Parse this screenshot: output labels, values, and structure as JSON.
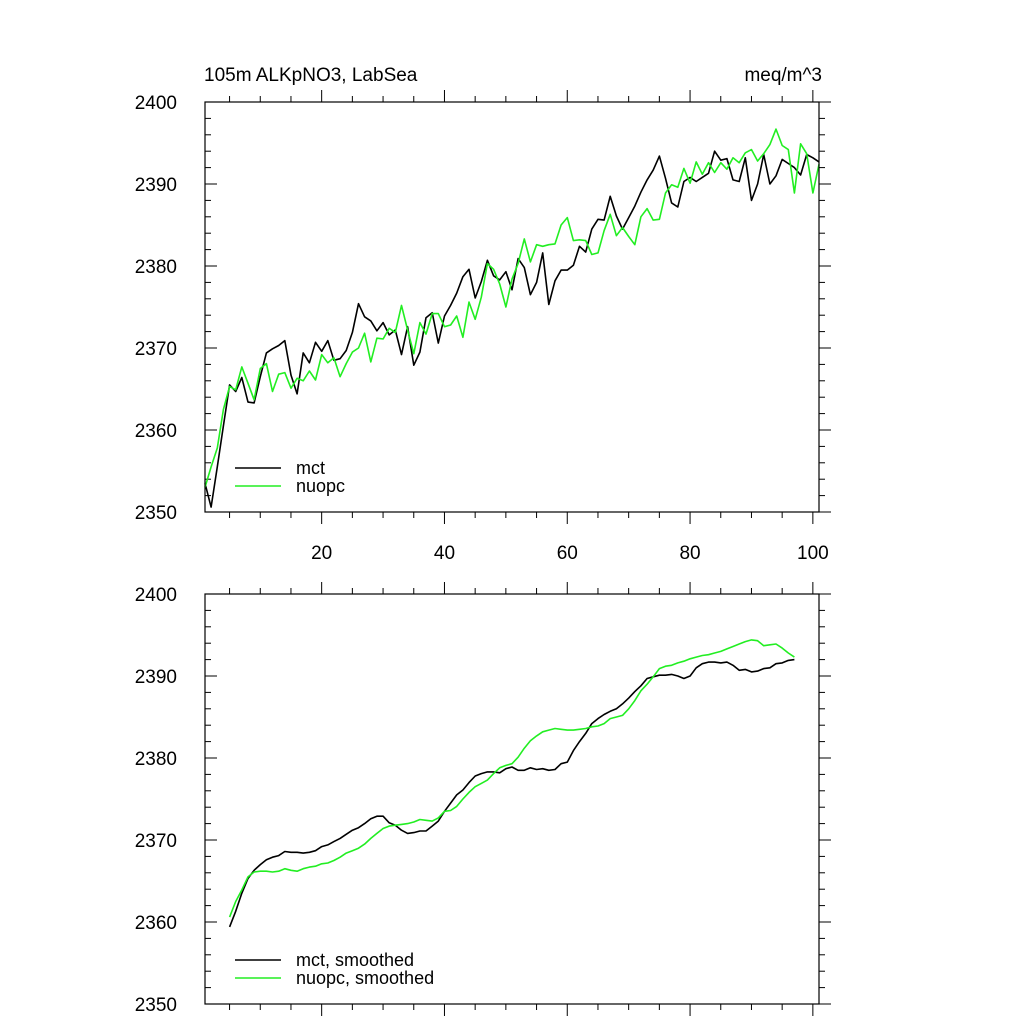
{
  "colors": {
    "mct": "#000000",
    "nuopc": "#22ee22"
  },
  "chart_data": [
    {
      "type": "line",
      "title": "105m ALKpNO3, LabSea",
      "units": "meq/m^3",
      "xlabel": "",
      "ylabel": "",
      "xlim": [
        1,
        101
      ],
      "ylim": [
        2350,
        2400
      ],
      "x_ticks": [
        20,
        40,
        60,
        80,
        100
      ],
      "y_ticks": [
        2350,
        2360,
        2370,
        2380,
        2390,
        2400
      ],
      "show_x_tick_labels": true,
      "grid": false,
      "legend_position": "bottom-left",
      "series": [
        {
          "name": "mct",
          "x": [
            1,
            2,
            3,
            4,
            5,
            6,
            7,
            8,
            9,
            10,
            11,
            12,
            13,
            14,
            15,
            16,
            17,
            18,
            19,
            20,
            21,
            22,
            23,
            24,
            25,
            26,
            27,
            28,
            29,
            30,
            31,
            32,
            33,
            34,
            35,
            36,
            37,
            38,
            39,
            40,
            41,
            42,
            43,
            44,
            45,
            46,
            47,
            48,
            49,
            50,
            51,
            52,
            53,
            54,
            55,
            56,
            57,
            58,
            59,
            60,
            61,
            62,
            63,
            64,
            65,
            66,
            67,
            68,
            69,
            70,
            71,
            72,
            73,
            74,
            75,
            76,
            77,
            78,
            79,
            80,
            81,
            82,
            83,
            84,
            85,
            86,
            87,
            88,
            89,
            90,
            91,
            92,
            93,
            94,
            95,
            96,
            97,
            98,
            99,
            100,
            101
          ],
          "values": [
            2353.5,
            2350.6,
            2355.5,
            2360.5,
            2365.5,
            2364.7,
            2366.4,
            2363.4,
            2363.3,
            2366.5,
            2369.4,
            2369.9,
            2370.3,
            2370.9,
            2366.7,
            2364.4,
            2369.4,
            2368.2,
            2370.7,
            2369.6,
            2370.9,
            2368.5,
            2368.7,
            2369.7,
            2371.9,
            2375.4,
            2373.8,
            2373.3,
            2372.1,
            2373.1,
            2371.6,
            2372.2,
            2369.2,
            2372.6,
            2367.9,
            2369.5,
            2373.7,
            2374.3,
            2370.6,
            2373.9,
            2375.2,
            2376.7,
            2378.7,
            2379.6,
            2376.1,
            2378.1,
            2380.7,
            2378.8,
            2378.3,
            2379.3,
            2377.1,
            2380.9,
            2379.8,
            2376.5,
            2378.0,
            2381.6,
            2375.3,
            2378.2,
            2379.5,
            2379.5,
            2380.1,
            2382.4,
            2381.7,
            2384.5,
            2385.7,
            2385.6,
            2388.5,
            2386.1,
            2384.5,
            2385.9,
            2387.3,
            2389.0,
            2390.5,
            2391.7,
            2393.4,
            2390.7,
            2387.7,
            2387.2,
            2390.3,
            2390.8,
            2390.3,
            2390.8,
            2391.3,
            2394.0,
            2392.9,
            2393.1,
            2390.5,
            2390.3,
            2393.2,
            2388.0,
            2390.0,
            2393.6,
            2390.0,
            2391.0,
            2393.0,
            2392.5,
            2392.0,
            2391.1,
            2393.6,
            2393.2,
            2392.7
          ]
        },
        {
          "name": "nuopc",
          "x": [
            1,
            2,
            3,
            4,
            5,
            6,
            7,
            8,
            9,
            10,
            11,
            12,
            13,
            14,
            15,
            16,
            17,
            18,
            19,
            20,
            21,
            22,
            23,
            24,
            25,
            26,
            27,
            28,
            29,
            30,
            31,
            32,
            33,
            34,
            35,
            36,
            37,
            38,
            39,
            40,
            41,
            42,
            43,
            44,
            45,
            46,
            47,
            48,
            49,
            50,
            51,
            52,
            53,
            54,
            55,
            56,
            57,
            58,
            59,
            60,
            61,
            62,
            63,
            64,
            65,
            66,
            67,
            68,
            69,
            70,
            71,
            72,
            73,
            74,
            75,
            76,
            77,
            78,
            79,
            80,
            81,
            82,
            83,
            84,
            85,
            86,
            87,
            88,
            89,
            90,
            91,
            92,
            93,
            94,
            95,
            96,
            97,
            98,
            99,
            100,
            101
          ],
          "values": [
            2353.0,
            2355.5,
            2357.8,
            2362.5,
            2365.3,
            2364.9,
            2367.7,
            2365.7,
            2363.7,
            2367.5,
            2368.1,
            2364.7,
            2366.8,
            2367.0,
            2365.1,
            2366.3,
            2366.0,
            2367.2,
            2366.1,
            2369.2,
            2368.2,
            2368.8,
            2366.5,
            2368.1,
            2369.5,
            2370.0,
            2371.8,
            2368.3,
            2371.2,
            2371.1,
            2372.4,
            2371.9,
            2375.2,
            2372.2,
            2369.3,
            2373.1,
            2371.7,
            2374.2,
            2374.2,
            2372.6,
            2372.8,
            2373.9,
            2371.3,
            2375.6,
            2373.5,
            2376.2,
            2380.3,
            2379.6,
            2377.8,
            2375.0,
            2378.4,
            2380.3,
            2383.3,
            2380.5,
            2382.6,
            2382.4,
            2382.6,
            2382.7,
            2385.0,
            2385.9,
            2383.1,
            2383.2,
            2383.1,
            2381.4,
            2381.6,
            2384.3,
            2386.3,
            2383.7,
            2384.7,
            2383.6,
            2382.6,
            2386.0,
            2387.0,
            2385.6,
            2385.7,
            2388.9,
            2389.9,
            2389.6,
            2391.9,
            2390.1,
            2392.7,
            2391.2,
            2392.6,
            2391.4,
            2392.6,
            2391.8,
            2393.2,
            2392.6,
            2393.8,
            2394.2,
            2392.8,
            2393.7,
            2394.8,
            2396.7,
            2394.7,
            2394.2,
            2388.9,
            2394.9,
            2393.7,
            2388.9,
            2392.4
          ]
        }
      ]
    },
    {
      "type": "line",
      "title": "",
      "xlabel": "",
      "ylabel": "",
      "xlim": [
        1,
        101
      ],
      "ylim": [
        2350,
        2400
      ],
      "x_ticks": [
        20,
        40,
        60,
        80,
        100
      ],
      "y_ticks": [
        2350,
        2360,
        2370,
        2380,
        2390,
        2400
      ],
      "show_x_tick_labels": false,
      "grid": false,
      "legend_position": "bottom-left",
      "series": [
        {
          "name": "mct, smoothed",
          "x": [
            5,
            6,
            7,
            8,
            9,
            10,
            11,
            12,
            13,
            14,
            15,
            16,
            17,
            18,
            19,
            20,
            21,
            22,
            23,
            24,
            25,
            26,
            27,
            28,
            29,
            30,
            31,
            32,
            33,
            34,
            35,
            36,
            37,
            38,
            39,
            40,
            41,
            42,
            43,
            44,
            45,
            46,
            47,
            48,
            49,
            50,
            51,
            52,
            53,
            54,
            55,
            56,
            57,
            58,
            59,
            60,
            61,
            62,
            63,
            64,
            65,
            66,
            67,
            68,
            69,
            70,
            71,
            72,
            73,
            74,
            75,
            76,
            77,
            78,
            79,
            80,
            81,
            82,
            83,
            84,
            85,
            86,
            87,
            88,
            89,
            90,
            91,
            92,
            93,
            94,
            95,
            96,
            97
          ],
          "values": [
            2359.4,
            2361.3,
            2363.5,
            2365.3,
            2366.3,
            2367.0,
            2367.6,
            2367.9,
            2368.1,
            2368.6,
            2368.5,
            2368.5,
            2368.4,
            2368.5,
            2368.7,
            2369.2,
            2369.4,
            2369.8,
            2370.2,
            2370.7,
            2371.2,
            2371.5,
            2372.0,
            2372.6,
            2372.9,
            2372.9,
            2372.1,
            2371.8,
            2371.2,
            2370.8,
            2370.9,
            2371.1,
            2371.1,
            2371.7,
            2372.3,
            2373.5,
            2374.5,
            2375.5,
            2376.1,
            2377.0,
            2377.8,
            2378.1,
            2378.3,
            2378.3,
            2378.2,
            2378.7,
            2378.9,
            2378.5,
            2378.5,
            2378.8,
            2378.6,
            2378.7,
            2378.5,
            2378.6,
            2379.3,
            2379.5,
            2380.9,
            2382.0,
            2383.0,
            2384.2,
            2384.8,
            2385.3,
            2385.7,
            2386.0,
            2386.6,
            2387.3,
            2388.1,
            2388.8,
            2389.7,
            2389.9,
            2390.1,
            2390.1,
            2390.2,
            2390.0,
            2389.7,
            2390.0,
            2391.0,
            2391.5,
            2391.7,
            2391.7,
            2391.6,
            2391.7,
            2391.3,
            2390.7,
            2390.8,
            2390.5,
            2390.6,
            2390.9,
            2391.0,
            2391.5,
            2391.6,
            2391.9,
            2392.0
          ]
        },
        {
          "name": "nuopc, smoothed",
          "x": [
            5,
            6,
            7,
            8,
            9,
            10,
            11,
            12,
            13,
            14,
            15,
            16,
            17,
            18,
            19,
            20,
            21,
            22,
            23,
            24,
            25,
            26,
            27,
            28,
            29,
            30,
            31,
            32,
            33,
            34,
            35,
            36,
            37,
            38,
            39,
            40,
            41,
            42,
            43,
            44,
            45,
            46,
            47,
            48,
            49,
            50,
            51,
            52,
            53,
            54,
            55,
            56,
            57,
            58,
            59,
            60,
            61,
            62,
            63,
            64,
            65,
            66,
            67,
            68,
            69,
            70,
            71,
            72,
            73,
            74,
            75,
            76,
            77,
            78,
            79,
            80,
            81,
            82,
            83,
            84,
            85,
            86,
            87,
            88,
            89,
            90,
            91,
            92,
            93,
            94,
            95,
            96,
            97
          ],
          "values": [
            2360.6,
            2362.5,
            2363.9,
            2365.5,
            2366.1,
            2366.2,
            2366.2,
            2366.1,
            2366.2,
            2366.5,
            2366.3,
            2366.2,
            2366.5,
            2366.7,
            2366.8,
            2367.1,
            2367.2,
            2367.5,
            2367.9,
            2368.4,
            2368.7,
            2369.0,
            2369.5,
            2370.2,
            2370.8,
            2371.4,
            2371.7,
            2371.8,
            2371.9,
            2372.0,
            2372.2,
            2372.5,
            2372.4,
            2372.3,
            2372.7,
            2373.5,
            2373.6,
            2374.1,
            2375.0,
            2375.8,
            2376.5,
            2376.9,
            2377.3,
            2378.1,
            2378.8,
            2379.1,
            2379.3,
            2380.1,
            2381.2,
            2382.1,
            2382.7,
            2383.2,
            2383.4,
            2383.6,
            2383.5,
            2383.4,
            2383.4,
            2383.5,
            2383.6,
            2383.8,
            2383.9,
            2384.2,
            2384.8,
            2385.0,
            2385.2,
            2386.0,
            2387.0,
            2388.2,
            2389.0,
            2389.9,
            2390.9,
            2391.2,
            2391.3,
            2391.6,
            2391.8,
            2392.1,
            2392.3,
            2392.5,
            2392.6,
            2392.8,
            2393.0,
            2393.3,
            2393.6,
            2393.9,
            2394.2,
            2394.4,
            2394.3,
            2393.7,
            2393.8,
            2393.9,
            2393.4,
            2392.8,
            2392.3
          ]
        }
      ]
    }
  ]
}
